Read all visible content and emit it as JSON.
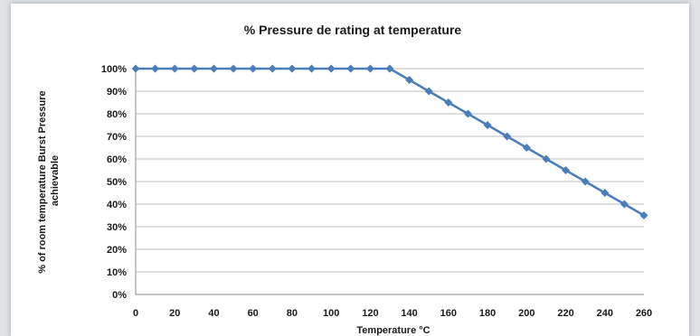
{
  "chart_data": {
    "type": "line",
    "title": "% Pressure de rating at temperature",
    "xlabel": "Temperature °C",
    "ylabel_lines": [
      "% of room temperature Burst Pressure",
      "achievable"
    ],
    "xlim": [
      0,
      260
    ],
    "ylim": [
      0,
      100
    ],
    "x_ticks": [
      0,
      20,
      40,
      60,
      80,
      100,
      120,
      140,
      160,
      180,
      200,
      220,
      240,
      260
    ],
    "y_ticks": [
      0,
      10,
      20,
      30,
      40,
      50,
      60,
      70,
      80,
      90,
      100
    ],
    "y_tick_labels": [
      "0%",
      "10%",
      "20%",
      "30%",
      "40%",
      "50%",
      "60%",
      "70%",
      "80%",
      "90%",
      "100%"
    ],
    "grid": true,
    "series": [
      {
        "color": "#4a7ebb",
        "marker": "diamond",
        "x": [
          0,
          10,
          20,
          30,
          40,
          50,
          60,
          70,
          80,
          90,
          100,
          110,
          120,
          130,
          140,
          150,
          160,
          170,
          180,
          190,
          200,
          210,
          220,
          230,
          240,
          250,
          260
        ],
        "values": [
          100,
          100,
          100,
          100,
          100,
          100,
          100,
          100,
          100,
          100,
          100,
          100,
          100,
          100,
          95,
          90,
          85,
          80,
          75,
          70,
          65,
          60,
          55,
          50,
          45,
          40,
          35
        ]
      }
    ]
  }
}
